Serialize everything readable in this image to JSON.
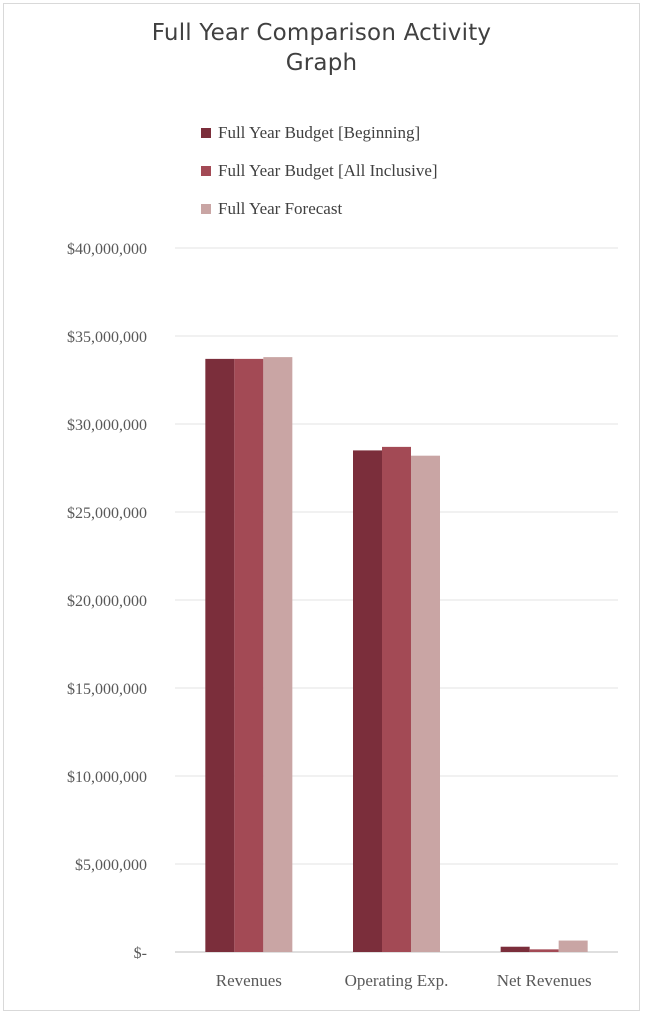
{
  "chart_data": {
    "type": "bar",
    "title": "Full Year Comparison Activity Graph",
    "title_lines": [
      "Full Year Comparison Activity",
      "Graph"
    ],
    "categories": [
      "Revenues",
      "Operating Exp.",
      "Net Revenues"
    ],
    "series": [
      {
        "name": "Full Year Budget [Beginning]",
        "color": "#7b2e3b",
        "values": [
          33700000,
          28500000,
          300000
        ]
      },
      {
        "name": "Full Year Budget [All Inclusive]",
        "color": "#a34a55",
        "values": [
          33700000,
          28700000,
          150000
        ]
      },
      {
        "name": "Full Year Forecast",
        "color": "#c9a5a4",
        "values": [
          33800000,
          28200000,
          650000
        ]
      }
    ],
    "ylim": [
      0,
      40000000
    ],
    "y_ticks": [
      {
        "value": 0,
        "label": "$-"
      },
      {
        "value": 5000000,
        "label": "$5,000,000"
      },
      {
        "value": 10000000,
        "label": "$10,000,000"
      },
      {
        "value": 15000000,
        "label": "$15,000,000"
      },
      {
        "value": 20000000,
        "label": "$20,000,000"
      },
      {
        "value": 25000000,
        "label": "$25,000,000"
      },
      {
        "value": 30000000,
        "label": "$30,000,000"
      },
      {
        "value": 35000000,
        "label": "$35,000,000"
      },
      {
        "value": 40000000,
        "label": "$40,000,000"
      }
    ],
    "xlabel": "",
    "ylabel": "",
    "grid": true,
    "legend_position": "top"
  }
}
